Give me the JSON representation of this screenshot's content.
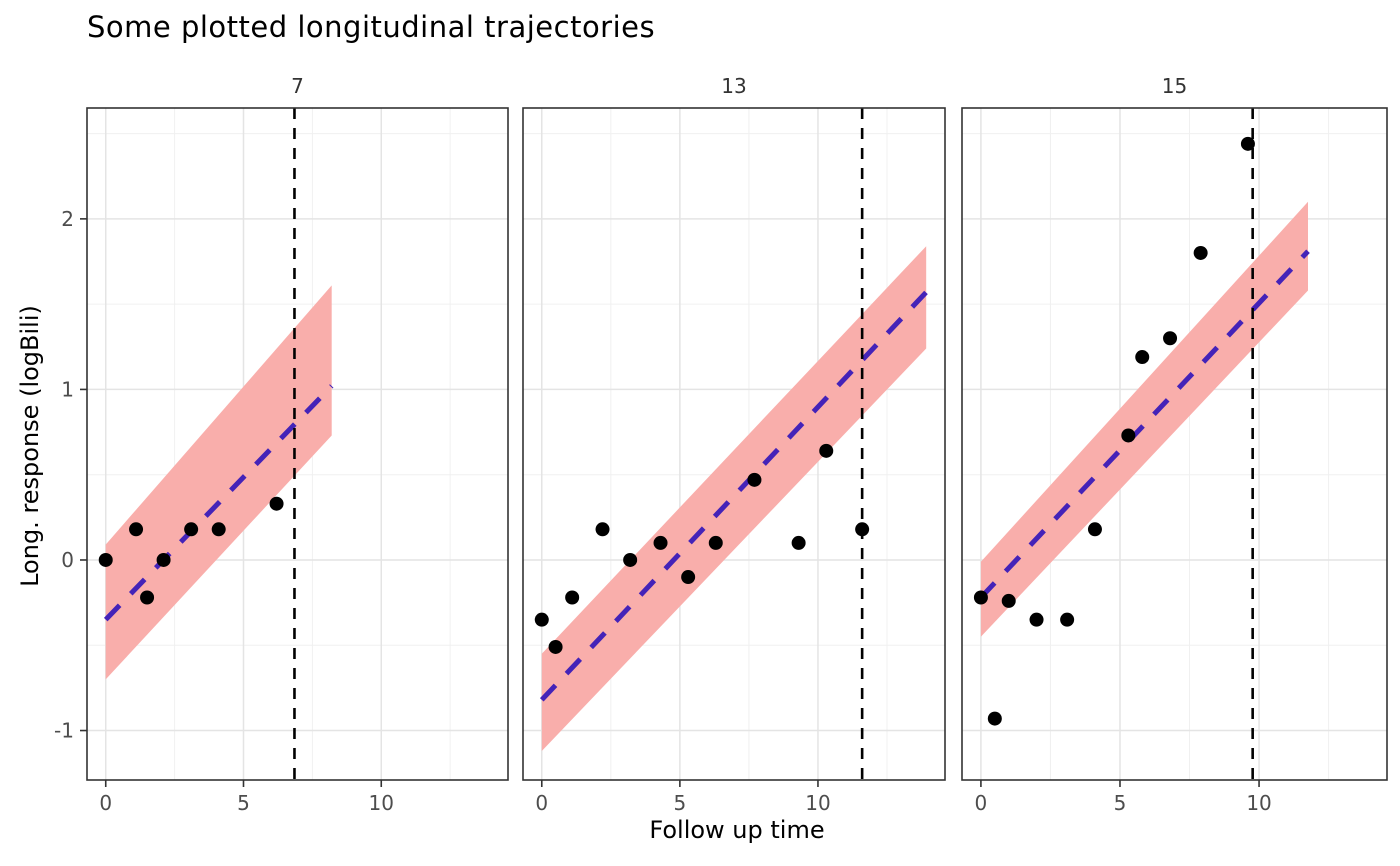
{
  "chart_data": {
    "type": "scatter",
    "faceted": true,
    "title": "Some plotted longitudinal trajectories",
    "xlabel": "Follow up time",
    "ylabel": "Long. response (logBili)",
    "xlim": [
      -0.68,
      14.6
    ],
    "ylim": [
      -1.29,
      2.65
    ],
    "x_ticks": [
      0,
      5,
      10
    ],
    "x_minor_ticks": [
      2.5,
      7.5,
      12.5
    ],
    "y_ticks": [
      -1,
      0,
      1,
      2
    ],
    "y_minor_ticks": [
      -0.5,
      0.5,
      1.5,
      2.5
    ],
    "grid": true,
    "legend": "none",
    "facets": [
      {
        "label": "7",
        "points": [
          [
            0,
            0
          ],
          [
            1.1,
            0.18
          ],
          [
            1.5,
            -0.22
          ],
          [
            2.1,
            0
          ],
          [
            3.1,
            0.18
          ],
          [
            4.1,
            0.18
          ],
          [
            6.2,
            0.33
          ]
        ],
        "fit_line": {
          "x": [
            0,
            8.2
          ],
          "y": [
            -0.35,
            1.02
          ]
        },
        "ribbon": {
          "x": [
            0,
            8.2
          ],
          "lower": [
            -0.7,
            0.73
          ],
          "upper": [
            0.09,
            1.61
          ]
        },
        "vline": 6.85
      },
      {
        "label": "13",
        "points": [
          [
            0,
            -0.35
          ],
          [
            0.5,
            -0.51
          ],
          [
            1.1,
            -0.22
          ],
          [
            2.2,
            0.18
          ],
          [
            3.2,
            0
          ],
          [
            4.3,
            0.1
          ],
          [
            5.3,
            -0.1
          ],
          [
            6.3,
            0.1
          ],
          [
            7.7,
            0.47
          ],
          [
            9.3,
            0.1
          ],
          [
            10.3,
            0.64
          ],
          [
            11.6,
            0.18
          ]
        ],
        "fit_line": {
          "x": [
            0,
            13.92
          ],
          "y": [
            -0.82,
            1.57
          ]
        },
        "ribbon": {
          "x": [
            0,
            13.92
          ],
          "lower": [
            -1.12,
            1.24
          ],
          "upper": [
            -0.55,
            1.84
          ]
        },
        "vline": 11.6
      },
      {
        "label": "15",
        "points": [
          [
            0,
            -0.22
          ],
          [
            0.5,
            -0.93
          ],
          [
            1,
            -0.24
          ],
          [
            2,
            -0.35
          ],
          [
            3.1,
            -0.35
          ],
          [
            4.1,
            0.18
          ],
          [
            5.3,
            0.73
          ],
          [
            5.8,
            1.19
          ],
          [
            6.8,
            1.3
          ],
          [
            7.9,
            1.8
          ],
          [
            9.6,
            2.44
          ]
        ],
        "fit_line": {
          "x": [
            0,
            11.76
          ],
          "y": [
            -0.22,
            1.81
          ]
        },
        "ribbon": {
          "x": [
            0,
            11.76
          ],
          "lower": [
            -0.45,
            1.58
          ],
          "upper": [
            -0.01,
            2.1
          ]
        },
        "vline": 9.77
      }
    ],
    "colors": {
      "ribbon": "#f9aeab",
      "fit_line": "#4423b8",
      "point": "#000000",
      "vline": "#000000",
      "grid_major": "#e4e4e4",
      "grid_minor": "#f0f0f0",
      "panel_border": "#333333",
      "tick_text": "#4d4d4d",
      "strip_text": "#333333",
      "background": "#ffffff"
    }
  }
}
